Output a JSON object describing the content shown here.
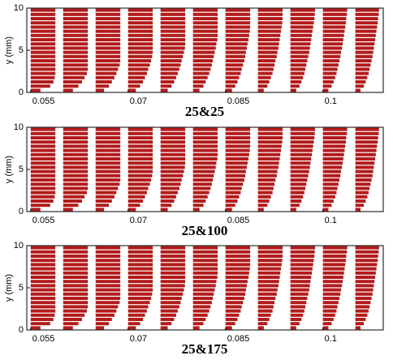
{
  "chart_data": [
    {
      "type": "bar",
      "title": "25&25",
      "y_label": "y (mm)",
      "color": "#b31b1b",
      "xlim": [
        0.0544,
        0.1093
      ],
      "xticks": [
        0.055,
        0.07,
        0.085,
        0.1
      ],
      "ylim": [
        0,
        10
      ],
      "yticks": [
        0,
        5,
        10
      ],
      "y": [
        0.25,
        0.75,
        1.25,
        1.75,
        2.25,
        2.75,
        3.25,
        3.75,
        4.25,
        4.75,
        5.25,
        5.75,
        6.25,
        6.75,
        7.25,
        7.75,
        8.25,
        8.75,
        9.25,
        9.75
      ],
      "series": [
        {
          "x": 0.055,
          "values": [
            0.0015,
            0.003,
            0.0035,
            0.0037,
            0.0038,
            0.0038,
            0.0038,
            0.0038,
            0.0038,
            0.0038,
            0.0038,
            0.0038,
            0.0038,
            0.0038,
            0.0038,
            0.0038,
            0.0038,
            0.0038,
            0.0038,
            0.0038
          ]
        },
        {
          "x": 0.06,
          "values": [
            0.0015,
            0.00235,
            0.0029,
            0.0033,
            0.00365,
            0.0038,
            0.0038,
            0.0038,
            0.0038,
            0.0038,
            0.0038,
            0.0038,
            0.0038,
            0.0038,
            0.0038,
            0.0038,
            0.0038,
            0.0038,
            0.0038,
            0.0038
          ]
        },
        {
          "x": 0.065,
          "values": [
            0.0013,
            0.00205,
            0.0025,
            0.0029,
            0.0032,
            0.00345,
            0.0037,
            0.0038,
            0.0038,
            0.0038,
            0.0038,
            0.0038,
            0.0038,
            0.0038,
            0.0038,
            0.0038,
            0.0038,
            0.0038,
            0.0038,
            0.0038
          ]
        },
        {
          "x": 0.07,
          "values": [
            0.0012,
            0.00185,
            0.0023,
            0.0026,
            0.0029,
            0.0031,
            0.00335,
            0.00355,
            0.0037,
            0.0038,
            0.0038,
            0.0038,
            0.0038,
            0.0038,
            0.0038,
            0.0038,
            0.0038,
            0.0038,
            0.0038,
            0.0038
          ]
        },
        {
          "x": 0.075,
          "values": [
            0.0011,
            0.0017,
            0.0021,
            0.0024,
            0.00265,
            0.0029,
            0.0031,
            0.00325,
            0.00345,
            0.0036,
            0.00375,
            0.0038,
            0.0038,
            0.0038,
            0.0038,
            0.0038,
            0.0038,
            0.0038,
            0.0038,
            0.0038
          ]
        },
        {
          "x": 0.08,
          "values": [
            0.001,
            0.0016,
            0.00195,
            0.00225,
            0.0025,
            0.0027,
            0.0029,
            0.00305,
            0.0032,
            0.00335,
            0.0035,
            0.0036,
            0.00375,
            0.0038,
            0.0038,
            0.0038,
            0.0038,
            0.0038,
            0.0038,
            0.0038
          ]
        },
        {
          "x": 0.085,
          "values": [
            0.001,
            0.0015,
            0.00185,
            0.0021,
            0.00235,
            0.0025,
            0.0027,
            0.0029,
            0.00305,
            0.00315,
            0.0033,
            0.0034,
            0.00355,
            0.00365,
            0.00375,
            0.0038,
            0.0038,
            0.0038,
            0.0038,
            0.0038
          ]
        },
        {
          "x": 0.09,
          "values": [
            0.0009,
            0.00145,
            0.00175,
            0.002,
            0.00225,
            0.0024,
            0.00255,
            0.0027,
            0.0029,
            0.003,
            0.00315,
            0.00325,
            0.00335,
            0.00345,
            0.00355,
            0.00365,
            0.00375,
            0.0038,
            0.0038,
            0.0038
          ]
        },
        {
          "x": 0.095,
          "values": [
            0.0009,
            0.0014,
            0.0017,
            0.00195,
            0.00215,
            0.0023,
            0.00245,
            0.0026,
            0.00275,
            0.0029,
            0.003,
            0.0031,
            0.0032,
            0.0033,
            0.0034,
            0.0035,
            0.0036,
            0.0037,
            0.00375,
            0.0038
          ]
        },
        {
          "x": 0.1,
          "values": [
            0.00085,
            0.00135,
            0.00165,
            0.0019,
            0.0021,
            0.00225,
            0.0024,
            0.00255,
            0.0027,
            0.0028,
            0.00295,
            0.00305,
            0.00315,
            0.00325,
            0.00335,
            0.00345,
            0.00355,
            0.0036,
            0.0037,
            0.00375
          ]
        },
        {
          "x": 0.105,
          "values": [
            0.0008,
            0.0013,
            0.0016,
            0.00185,
            0.00205,
            0.0022,
            0.00235,
            0.0025,
            0.00265,
            0.00275,
            0.00285,
            0.00295,
            0.00305,
            0.00315,
            0.00325,
            0.00335,
            0.00345,
            0.0035,
            0.0036,
            0.00365
          ]
        }
      ]
    },
    {
      "type": "bar",
      "title": "25&100",
      "y_label": "y (mm)",
      "color": "#b31b1b",
      "xlim": [
        0.0544,
        0.1093
      ],
      "xticks": [
        0.055,
        0.07,
        0.085,
        0.1
      ],
      "ylim": [
        0,
        10
      ],
      "yticks": [
        0,
        5,
        10
      ],
      "y": [
        0.25,
        0.75,
        1.25,
        1.75,
        2.25,
        2.75,
        3.25,
        3.75,
        4.25,
        4.75,
        5.25,
        5.75,
        6.25,
        6.75,
        7.25,
        7.75,
        8.25,
        8.75,
        9.25,
        9.75
      ],
      "series": [
        {
          "x": 0.055,
          "values": [
            0.0015,
            0.003,
            0.0035,
            0.0037,
            0.0038,
            0.0038,
            0.0038,
            0.0038,
            0.0038,
            0.0038,
            0.0038,
            0.0038,
            0.0038,
            0.0038,
            0.0038,
            0.0038,
            0.0038,
            0.0038,
            0.0038,
            0.0038
          ]
        },
        {
          "x": 0.06,
          "values": [
            0.0015,
            0.00235,
            0.0029,
            0.0033,
            0.00365,
            0.0038,
            0.0038,
            0.0038,
            0.0038,
            0.0038,
            0.0038,
            0.0038,
            0.0038,
            0.0038,
            0.0038,
            0.0038,
            0.0038,
            0.0038,
            0.0038,
            0.0038
          ]
        },
        {
          "x": 0.065,
          "values": [
            0.0013,
            0.00205,
            0.0025,
            0.0029,
            0.0032,
            0.00345,
            0.0037,
            0.0038,
            0.0038,
            0.0038,
            0.0038,
            0.0038,
            0.0038,
            0.0038,
            0.0038,
            0.0038,
            0.0038,
            0.0038,
            0.0038,
            0.0038
          ]
        },
        {
          "x": 0.07,
          "values": [
            0.0012,
            0.00185,
            0.0023,
            0.0026,
            0.0029,
            0.0031,
            0.00335,
            0.00355,
            0.0037,
            0.0038,
            0.0038,
            0.0038,
            0.0038,
            0.0038,
            0.0038,
            0.0038,
            0.0038,
            0.0038,
            0.0038,
            0.0038
          ]
        },
        {
          "x": 0.075,
          "values": [
            0.0011,
            0.0017,
            0.0021,
            0.0024,
            0.00265,
            0.0029,
            0.0031,
            0.00325,
            0.00345,
            0.0036,
            0.00375,
            0.0038,
            0.0038,
            0.0038,
            0.0038,
            0.0038,
            0.0038,
            0.0038,
            0.0038,
            0.0038
          ]
        },
        {
          "x": 0.08,
          "values": [
            0.001,
            0.0016,
            0.00195,
            0.00225,
            0.0025,
            0.0027,
            0.0029,
            0.00305,
            0.0032,
            0.00335,
            0.0035,
            0.0036,
            0.00375,
            0.0038,
            0.0038,
            0.0038,
            0.0038,
            0.0038,
            0.0038,
            0.0038
          ]
        },
        {
          "x": 0.085,
          "values": [
            0.001,
            0.0015,
            0.00185,
            0.0021,
            0.00235,
            0.0025,
            0.0027,
            0.0029,
            0.00305,
            0.00315,
            0.0033,
            0.0034,
            0.00355,
            0.00365,
            0.00375,
            0.0038,
            0.0038,
            0.0038,
            0.0038,
            0.0038
          ]
        },
        {
          "x": 0.09,
          "values": [
            0.0009,
            0.00145,
            0.00175,
            0.002,
            0.00225,
            0.0024,
            0.00255,
            0.0027,
            0.0029,
            0.003,
            0.00315,
            0.00325,
            0.00335,
            0.00345,
            0.00355,
            0.00365,
            0.00375,
            0.0038,
            0.0038,
            0.0038
          ]
        },
        {
          "x": 0.095,
          "values": [
            0.0009,
            0.0014,
            0.0017,
            0.00195,
            0.00215,
            0.0023,
            0.00245,
            0.0026,
            0.00275,
            0.0029,
            0.003,
            0.0031,
            0.0032,
            0.0033,
            0.0034,
            0.0035,
            0.0036,
            0.0037,
            0.00375,
            0.0038
          ]
        },
        {
          "x": 0.1,
          "values": [
            0.00085,
            0.00135,
            0.00165,
            0.0019,
            0.0021,
            0.00225,
            0.0024,
            0.00255,
            0.0027,
            0.0028,
            0.00295,
            0.00305,
            0.00315,
            0.00325,
            0.00335,
            0.00345,
            0.00355,
            0.0036,
            0.0037,
            0.00375
          ]
        },
        {
          "x": 0.105,
          "values": [
            0.0008,
            0.0013,
            0.0016,
            0.00185,
            0.00205,
            0.0022,
            0.00235,
            0.0025,
            0.00265,
            0.00275,
            0.00285,
            0.00295,
            0.00305,
            0.00315,
            0.00325,
            0.00335,
            0.00345,
            0.0035,
            0.0036,
            0.00365
          ]
        }
      ]
    },
    {
      "type": "bar",
      "title": "25&175",
      "y_label": "y (mm)",
      "color": "#b31b1b",
      "xlim": [
        0.0544,
        0.1093
      ],
      "xticks": [
        0.055,
        0.07,
        0.085,
        0.1
      ],
      "ylim": [
        0,
        10
      ],
      "yticks": [
        0,
        5,
        10
      ],
      "y": [
        0.25,
        0.75,
        1.25,
        1.75,
        2.25,
        2.75,
        3.25,
        3.75,
        4.25,
        4.75,
        5.25,
        5.75,
        6.25,
        6.75,
        7.25,
        7.75,
        8.25,
        8.75,
        9.25,
        9.75
      ],
      "series": [
        {
          "x": 0.055,
          "values": [
            0.0015,
            0.003,
            0.0035,
            0.0037,
            0.0038,
            0.0038,
            0.0038,
            0.0038,
            0.0038,
            0.0038,
            0.0038,
            0.0038,
            0.0038,
            0.0038,
            0.0038,
            0.0038,
            0.0038,
            0.0038,
            0.0038,
            0.0038
          ]
        },
        {
          "x": 0.06,
          "values": [
            0.0015,
            0.00235,
            0.0029,
            0.0033,
            0.00365,
            0.0038,
            0.0038,
            0.0038,
            0.0038,
            0.0038,
            0.0038,
            0.0038,
            0.0038,
            0.0038,
            0.0038,
            0.0038,
            0.0038,
            0.0038,
            0.0038,
            0.0038
          ]
        },
        {
          "x": 0.065,
          "values": [
            0.0013,
            0.00205,
            0.0025,
            0.0029,
            0.0032,
            0.00345,
            0.0037,
            0.0038,
            0.0038,
            0.0038,
            0.0038,
            0.0038,
            0.0038,
            0.0038,
            0.0038,
            0.0038,
            0.0038,
            0.0038,
            0.0038,
            0.0038
          ]
        },
        {
          "x": 0.07,
          "values": [
            0.0012,
            0.00185,
            0.0023,
            0.0026,
            0.0029,
            0.0031,
            0.00335,
            0.00355,
            0.0037,
            0.0038,
            0.0038,
            0.0038,
            0.0038,
            0.0038,
            0.0038,
            0.0038,
            0.0038,
            0.0038,
            0.0038,
            0.0038
          ]
        },
        {
          "x": 0.075,
          "values": [
            0.0011,
            0.0017,
            0.0021,
            0.0024,
            0.00265,
            0.0029,
            0.0031,
            0.00325,
            0.00345,
            0.0036,
            0.00375,
            0.0038,
            0.0038,
            0.0038,
            0.0038,
            0.0038,
            0.0038,
            0.0038,
            0.0038,
            0.0038
          ]
        },
        {
          "x": 0.08,
          "values": [
            0.001,
            0.0016,
            0.00195,
            0.00225,
            0.0025,
            0.0027,
            0.0029,
            0.00305,
            0.0032,
            0.00335,
            0.0035,
            0.0036,
            0.00375,
            0.0038,
            0.0038,
            0.0038,
            0.0038,
            0.0038,
            0.0038,
            0.0038
          ]
        },
        {
          "x": 0.085,
          "values": [
            0.001,
            0.0015,
            0.00185,
            0.0021,
            0.00235,
            0.0025,
            0.0027,
            0.0029,
            0.00305,
            0.00315,
            0.0033,
            0.0034,
            0.00355,
            0.00365,
            0.00375,
            0.0038,
            0.0038,
            0.0038,
            0.0038,
            0.0038
          ]
        },
        {
          "x": 0.09,
          "values": [
            0.0009,
            0.00145,
            0.00175,
            0.002,
            0.00225,
            0.0024,
            0.00255,
            0.0027,
            0.0029,
            0.003,
            0.00315,
            0.00325,
            0.00335,
            0.00345,
            0.00355,
            0.00365,
            0.00375,
            0.0038,
            0.0038,
            0.0038
          ]
        },
        {
          "x": 0.095,
          "values": [
            0.0009,
            0.0014,
            0.0017,
            0.00195,
            0.00215,
            0.0023,
            0.00245,
            0.0026,
            0.00275,
            0.0029,
            0.003,
            0.0031,
            0.0032,
            0.0033,
            0.0034,
            0.0035,
            0.0036,
            0.0037,
            0.00375,
            0.0038
          ]
        },
        {
          "x": 0.1,
          "values": [
            0.00085,
            0.00135,
            0.00165,
            0.0019,
            0.0021,
            0.00225,
            0.0024,
            0.00255,
            0.0027,
            0.0028,
            0.00295,
            0.00305,
            0.00315,
            0.00325,
            0.00335,
            0.00345,
            0.00355,
            0.0036,
            0.0037,
            0.00375
          ]
        },
        {
          "x": 0.105,
          "values": [
            0.0008,
            0.0013,
            0.0016,
            0.00185,
            0.00205,
            0.0022,
            0.00235,
            0.0025,
            0.00265,
            0.00275,
            0.00285,
            0.00295,
            0.00305,
            0.00315,
            0.00325,
            0.00335,
            0.00345,
            0.0035,
            0.0036,
            0.00365
          ]
        }
      ]
    }
  ]
}
